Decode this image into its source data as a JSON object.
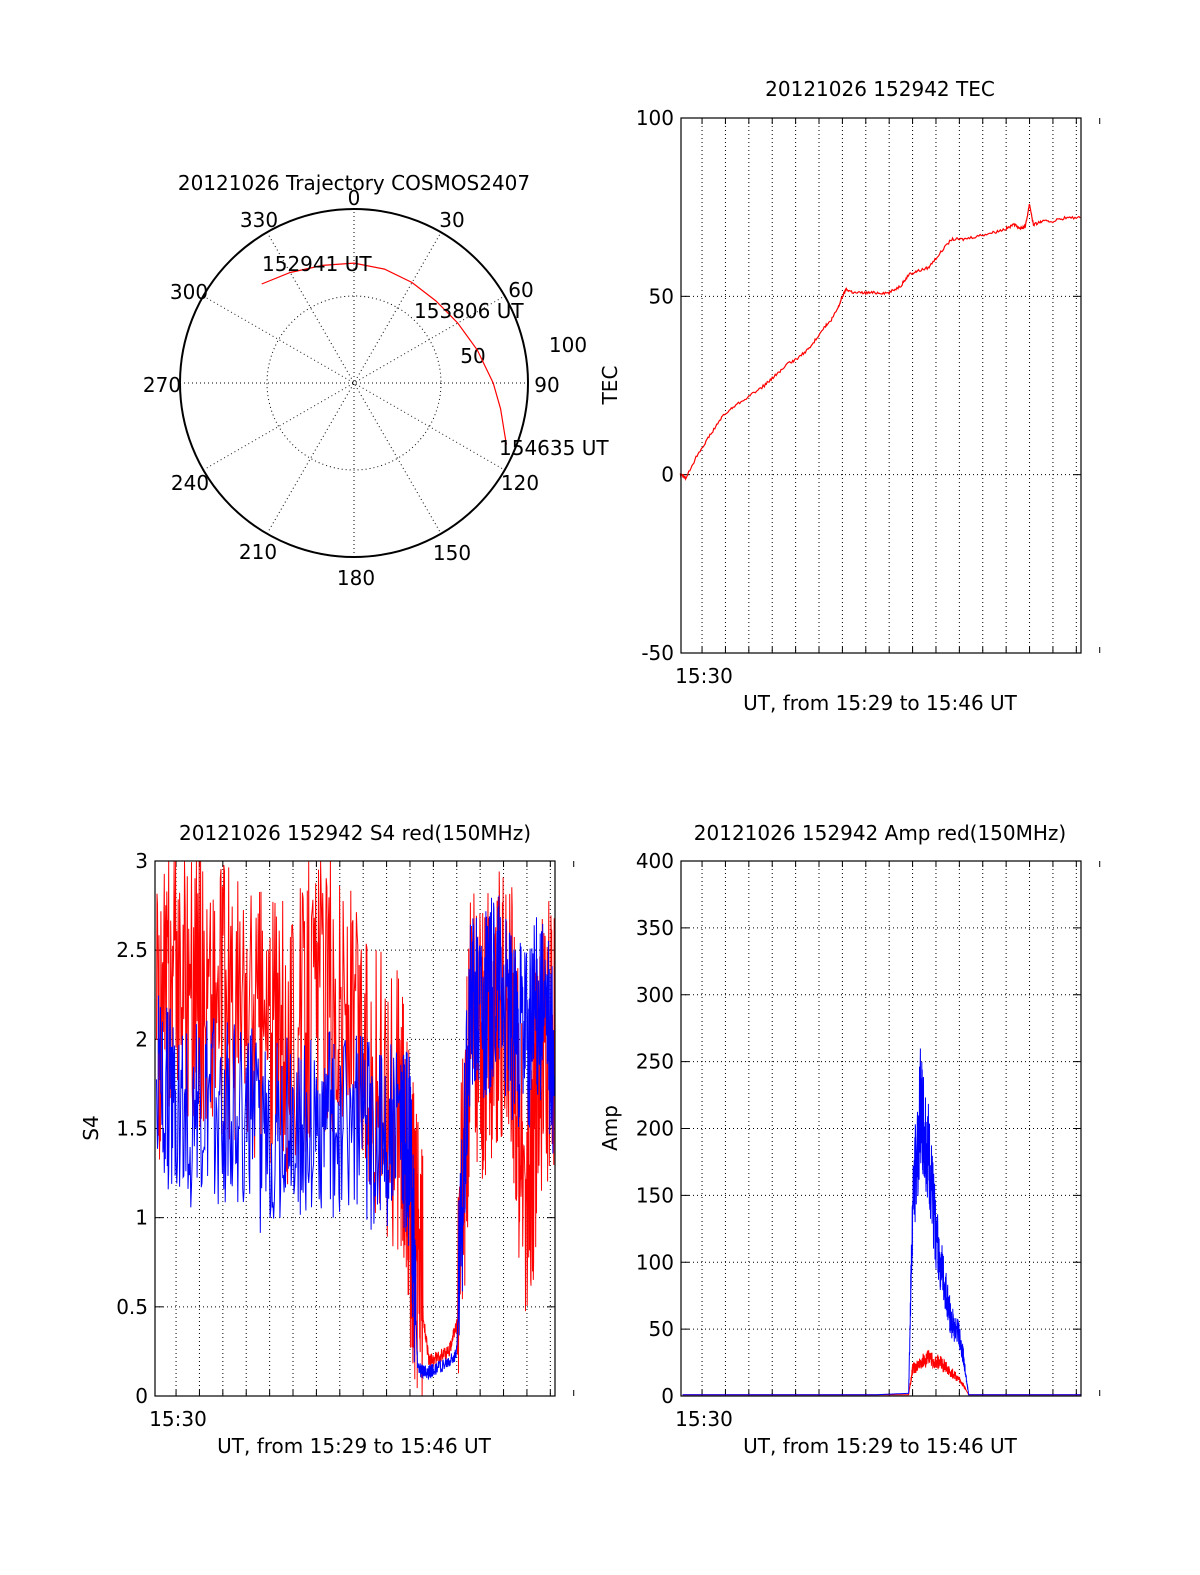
{
  "chart_data": [
    {
      "id": "trajectory",
      "type": "polar",
      "title": "20121026 Trajectory COSMOS2407",
      "angle_labels": [
        "0",
        "30",
        "60",
        "90",
        "120",
        "150",
        "180",
        "210",
        "240",
        "270",
        "300",
        "330"
      ],
      "radial_labels": [
        "50",
        "100"
      ],
      "points": [
        {
          "label": "152941 UT",
          "azimuth_deg": 317,
          "elevation_deg": 20
        },
        {
          "label": "153806 UT",
          "azimuth_deg": 45,
          "elevation_deg": 30
        },
        {
          "label": "154635 UT",
          "azimuth_deg": 112,
          "elevation_deg": 5
        }
      ],
      "track": {
        "color": "#ff0000",
        "azimuth_deg": [
          317,
          330,
          345,
          0,
          15,
          30,
          45,
          60,
          75,
          90,
          100,
          107,
          112
        ],
        "elevation_deg": [
          20,
          24,
          27,
          28,
          29,
          30,
          30,
          28,
          24,
          18,
          13,
          9,
          5
        ]
      }
    },
    {
      "id": "tec",
      "type": "line",
      "title": "20121026 152942 TEC",
      "xlabel": "UT, from 15:29 to 15:46 UT",
      "ylabel": "TEC",
      "xlim": [
        15.485,
        15.77
      ],
      "ylim": [
        -50,
        100
      ],
      "yticks": [
        "100",
        "50",
        "0",
        "-50"
      ],
      "xtick_label": "15:30",
      "grid": true,
      "series": [
        {
          "color": "#ff0000",
          "x": [
            15.4845,
            15.4883,
            15.4972,
            15.5056,
            15.5139,
            15.5222,
            15.5333,
            15.5444,
            15.5528,
            15.5611,
            15.5694,
            15.5778,
            15.5861,
            15.5917,
            15.5972,
            15.6,
            15.6028,
            15.6083,
            15.6167,
            15.625,
            15.6333,
            15.6417,
            15.6472,
            15.6528,
            15.6611,
            15.6694,
            15.6778,
            15.6861,
            15.6972,
            15.7083,
            15.7167,
            15.7222,
            15.7278,
            15.7306,
            15.7333,
            15.7361,
            15.7417,
            15.75,
            15.7583,
            15.7694
          ],
          "values": [
            0,
            -1,
            6,
            11,
            16,
            19,
            22,
            25,
            28,
            31,
            33,
            36,
            41,
            43,
            47,
            50,
            52,
            51,
            51,
            51,
            51,
            53,
            56,
            57,
            58,
            62,
            66,
            66,
            67,
            68,
            69,
            70,
            69,
            70,
            76,
            70,
            71,
            71,
            72,
            72
          ]
        }
      ]
    },
    {
      "id": "s4",
      "type": "line",
      "title": "20121026 152942 S4 red(150MHz)",
      "xlabel": "UT, from 15:29 to 15:46 UT",
      "ylabel": "S4",
      "xlim": [
        15.485,
        15.77
      ],
      "ylim": [
        0,
        3
      ],
      "yticks": [
        "3",
        "2.5",
        "2",
        "1.5",
        "1",
        "0.5",
        "0"
      ],
      "xtick_label": "15:30",
      "grid": true,
      "series": [
        {
          "color": "#ff0000",
          "x": [
            15.4861,
            15.5,
            15.52,
            15.54,
            15.56,
            15.58,
            15.6,
            15.62,
            15.64,
            15.66,
            15.6667,
            15.6722,
            15.68,
            15.6833,
            15.6944,
            15.7,
            15.71,
            15.72,
            15.73,
            15.74,
            15.75,
            15.7583,
            15.77
          ],
          "values": [
            2.0,
            2.3,
            2.2,
            2.1,
            2.0,
            1.9,
            2.2,
            2.1,
            1.7,
            1.5,
            1.0,
            0.7,
            0.2,
            0.2,
            0.25,
            0.4,
            2.0,
            1.9,
            2.1,
            2.0,
            0.8,
            1.8,
            2.0
          ]
        },
        {
          "color": "#0000ff",
          "x": [
            15.4861,
            15.5,
            15.52,
            15.54,
            15.56,
            15.58,
            15.6,
            15.62,
            15.64,
            15.66,
            15.6667,
            15.6722,
            15.68,
            15.6833,
            15.6944,
            15.7,
            15.71,
            15.72,
            15.73,
            15.74,
            15.75,
            15.7583,
            15.77
          ],
          "values": [
            1.7,
            1.6,
            1.5,
            1.6,
            1.4,
            1.5,
            1.4,
            1.5,
            1.4,
            1.4,
            1.3,
            0.15,
            0.13,
            0.15,
            0.18,
            0.25,
            2.2,
            2.1,
            2.3,
            2.0,
            1.9,
            2.2,
            1.8
          ]
        }
      ]
    },
    {
      "id": "amp",
      "type": "line",
      "title": "20121026 152942 Amp red(150MHz)",
      "xlabel": "UT, from 15:29 to 15:46 UT",
      "ylabel": "Amp",
      "xlim": [
        15.485,
        15.77
      ],
      "ylim": [
        0,
        400
      ],
      "yticks": [
        "400",
        "350",
        "300",
        "250",
        "200",
        "150",
        "100",
        "50",
        "0"
      ],
      "xtick_label": "15:30",
      "grid": true,
      "series": [
        {
          "color": "#ff0000",
          "x": [
            15.4861,
            15.5,
            15.55,
            15.6,
            15.625,
            15.6472,
            15.65,
            15.6556,
            15.6611,
            15.6694,
            15.675,
            15.6806,
            15.6861,
            15.69,
            15.72,
            15.77
          ],
          "values": [
            1,
            1,
            1,
            1,
            1,
            1,
            20,
            25,
            28,
            25,
            20,
            15,
            8,
            1,
            1,
            1
          ]
        },
        {
          "color": "#0000ff",
          "x": [
            15.4861,
            15.5,
            15.55,
            15.6,
            15.625,
            15.6472,
            15.65,
            15.6556,
            15.6611,
            15.6667,
            15.6722,
            15.6778,
            15.6833,
            15.6861,
            15.69,
            15.72,
            15.77
          ],
          "values": [
            1,
            1,
            1,
            1,
            1,
            2,
            140,
            215,
            180,
            120,
            85,
            55,
            45,
            30,
            1,
            1,
            1
          ]
        }
      ]
    }
  ]
}
